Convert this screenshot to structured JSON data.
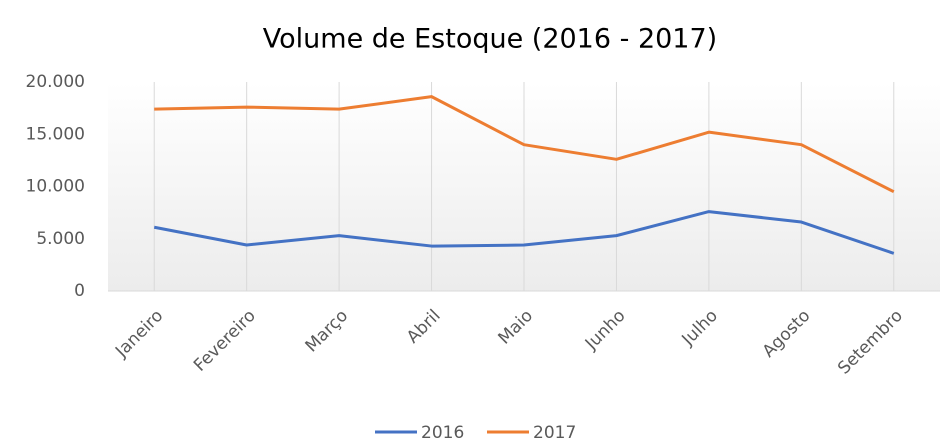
{
  "chart_data": {
    "type": "line",
    "title": "Volume de Estoque (2016 - 2017)",
    "categories": [
      "Janeiro",
      "Fevereiro",
      "Março",
      "Abril",
      "Maio",
      "Junho",
      "Julho",
      "Agosto",
      "Setembro"
    ],
    "series": [
      {
        "name": "2016",
        "color": "#4472c4",
        "values": [
          6100,
          4400,
          5300,
          4300,
          4400,
          5300,
          7600,
          6600,
          3600
        ]
      },
      {
        "name": "2017",
        "color": "#ed7d31",
        "values": [
          17400,
          17600,
          17400,
          18600,
          14000,
          12600,
          15200,
          14000,
          9500
        ]
      }
    ],
    "ylim": [
      0,
      20000
    ],
    "yticks": [
      0,
      {
        "value": 5000,
        "label": "5.000"
      },
      {
        "value": 10000,
        "label": "10.000"
      },
      {
        "value": 15000,
        "label": "15.000"
      },
      {
        "value": 20000,
        "label": "20.000"
      }
    ],
    "grid": "x",
    "legend": "bottom"
  }
}
